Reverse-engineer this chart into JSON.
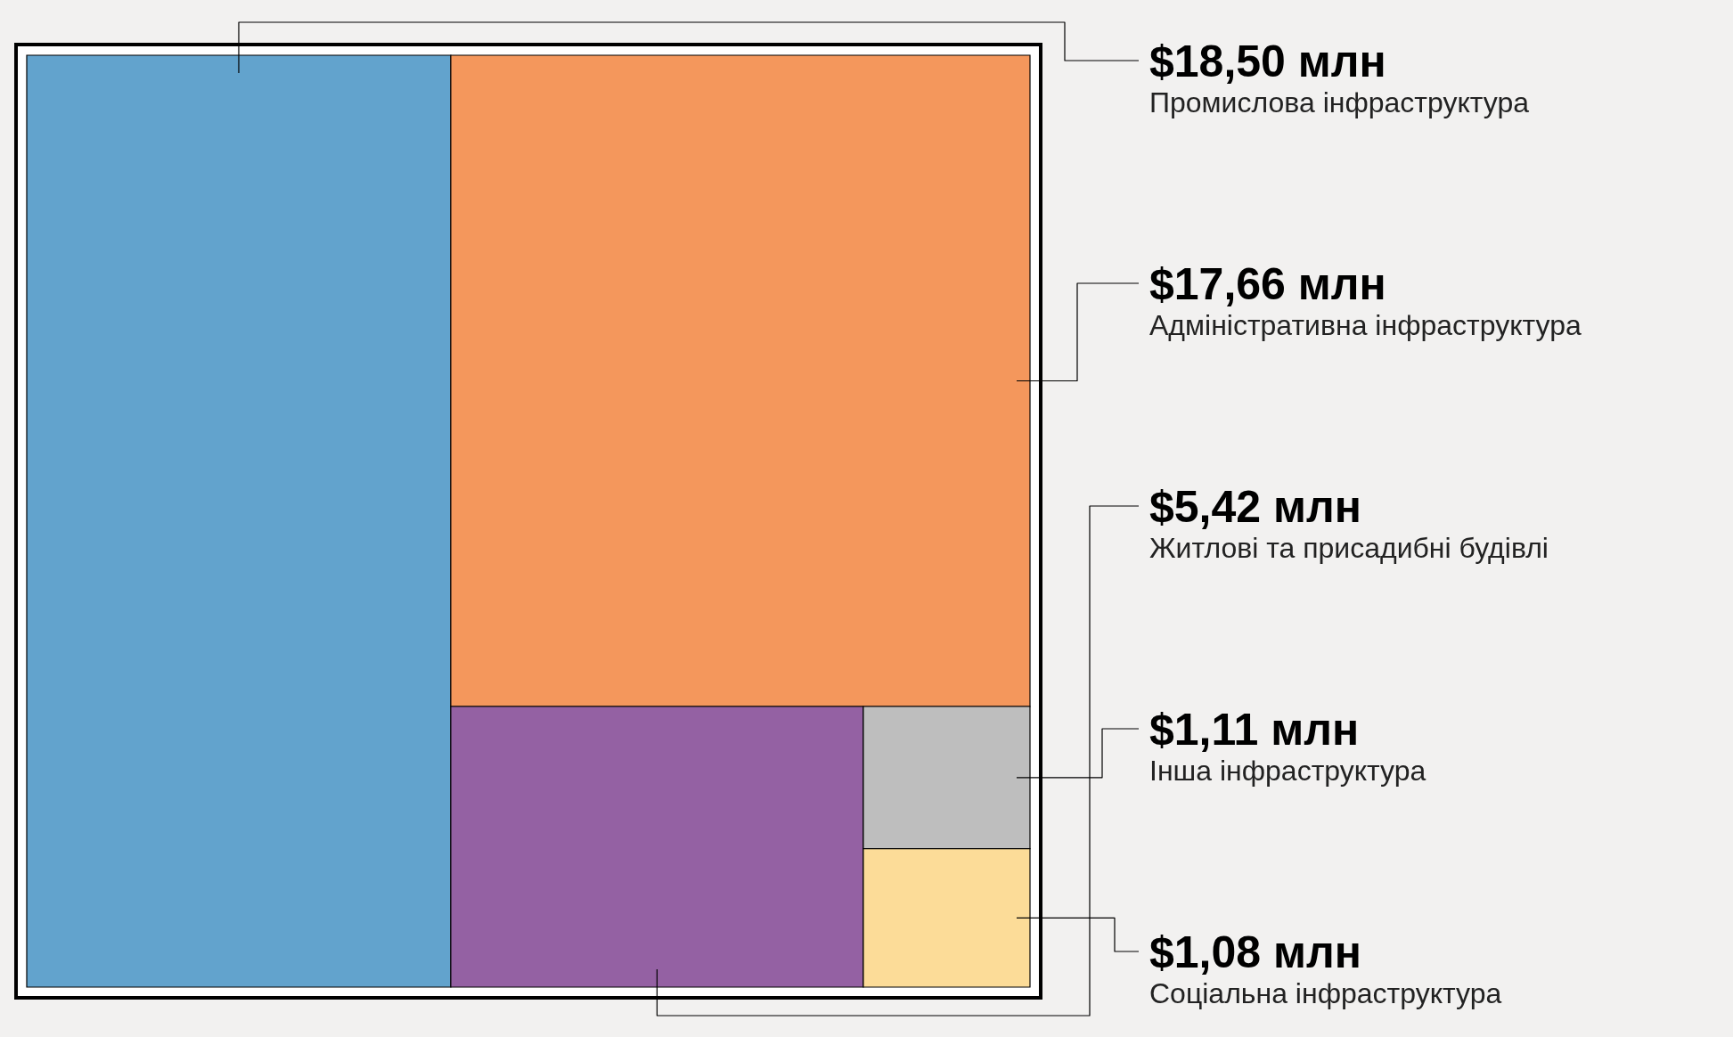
{
  "chart_data": {
    "type": "other",
    "categories": [
      "Промислова інфраструктура",
      "Адміністративна інфраструктура",
      "Житлові та присадибні будівлі",
      "Інша інфраструктура",
      "Соціальна інфраструктура"
    ],
    "values": [
      18.5,
      17.66,
      5.42,
      1.11,
      1.08
    ],
    "value_labels": [
      "$18,50 млн",
      "$17,66 млн",
      "$5,42 млн",
      "$1,11 млн",
      "$1,08 млн"
    ],
    "colors": [
      "#62a3cd",
      "#f4975c",
      "#9461a3",
      "#bebebe",
      "#fcdc98"
    ]
  }
}
